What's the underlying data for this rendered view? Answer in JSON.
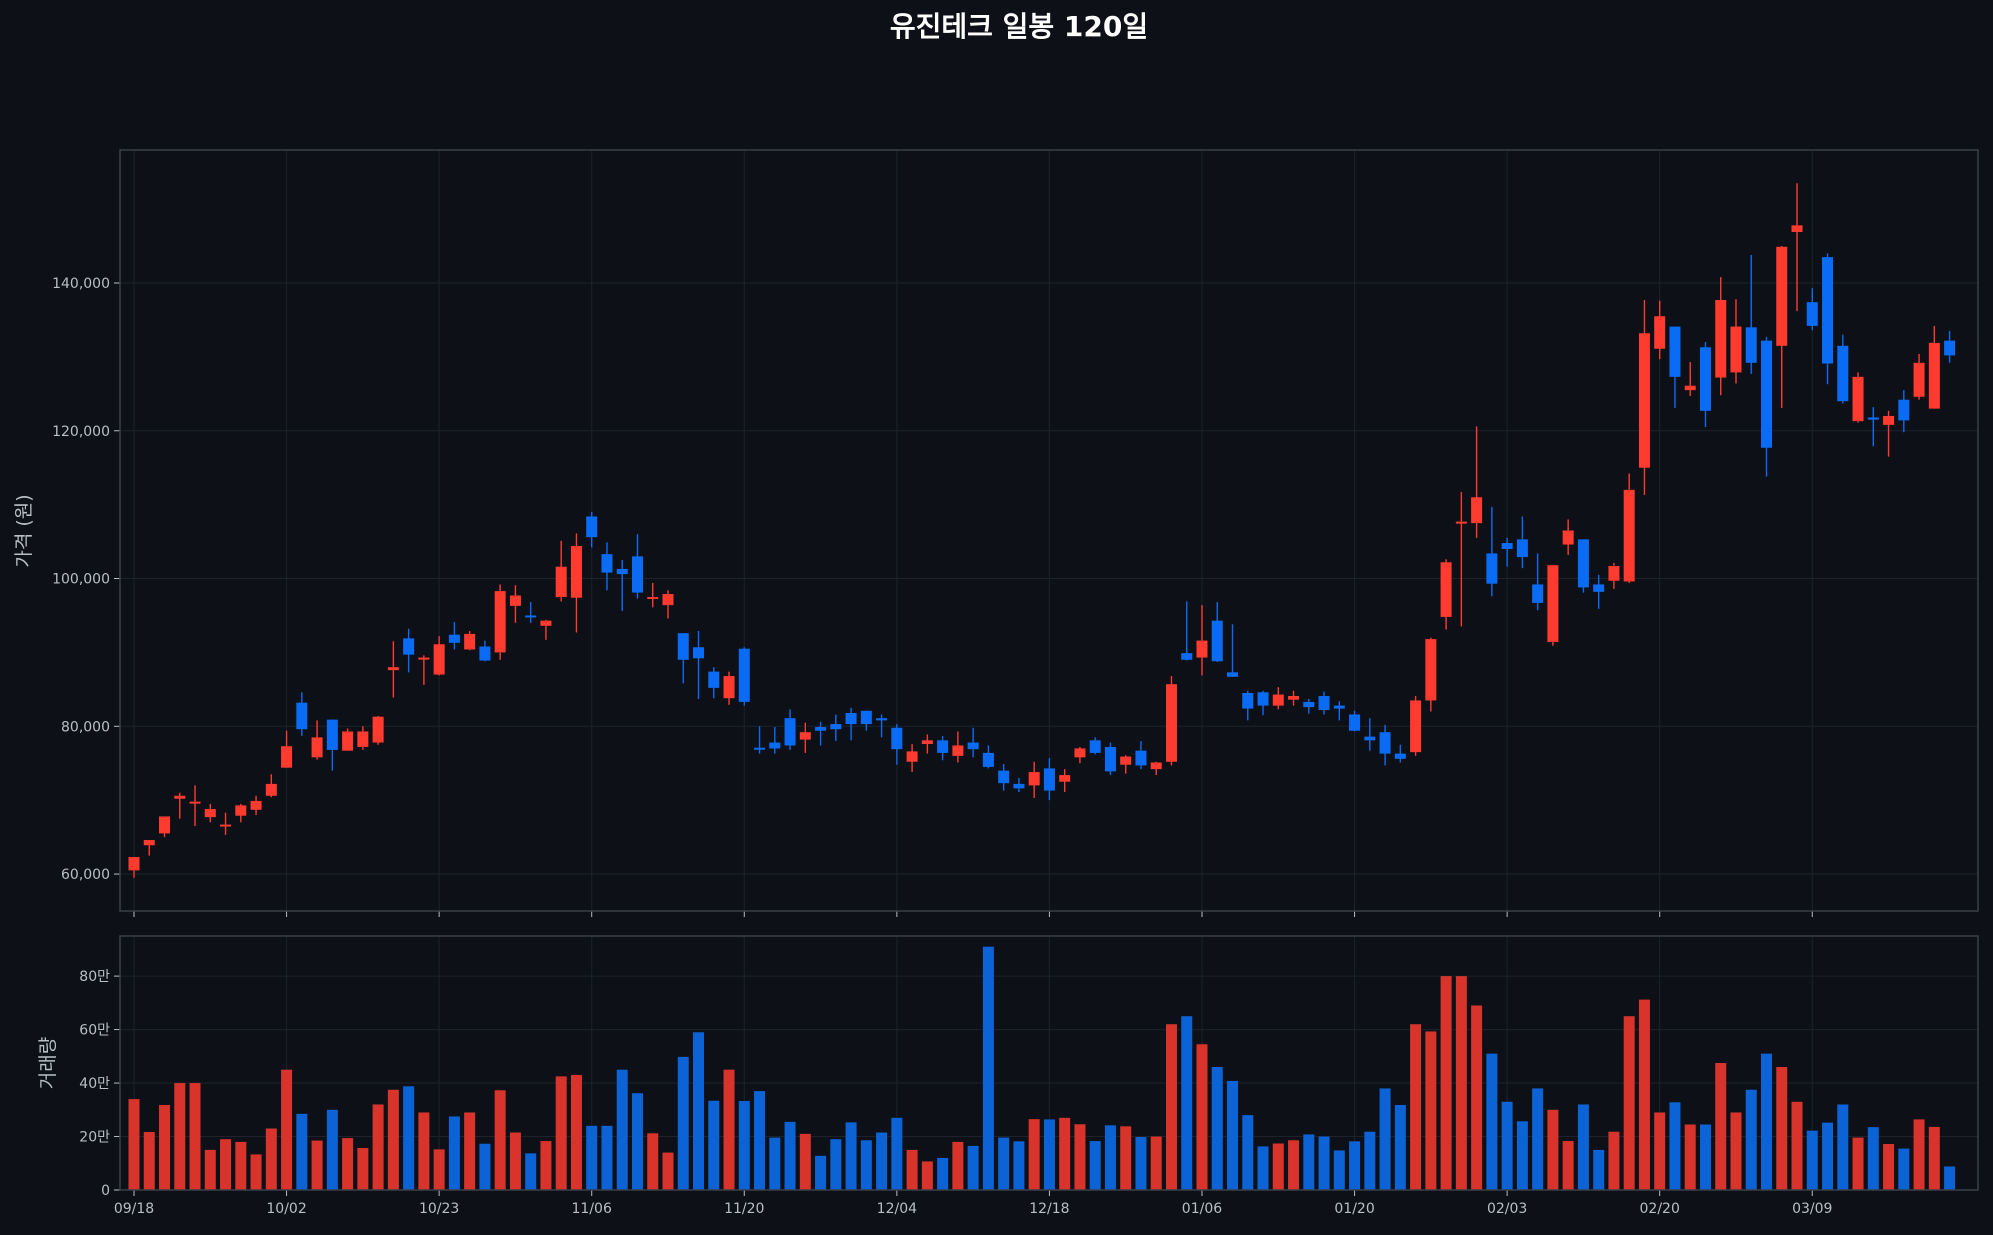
{
  "colors": {
    "background": "#0d1017",
    "up": "#ff3b30",
    "down": "#0a6cf5",
    "vol_up": "#d8342c",
    "vol_down": "#0b63d6",
    "grid": "#1d222b",
    "frame": "#3a3f48",
    "text": "#b9bec7"
  },
  "chart_data": {
    "type": "candlestick",
    "title": "유진테크 일봉 120일",
    "price_axis": {
      "label": "가격 (원)",
      "ylim": [
        55000,
        158000
      ],
      "ticks": [
        60000,
        80000,
        100000,
        120000,
        140000
      ],
      "tick_labels": [
        "60,000",
        "80,000",
        "100,000",
        "120,000",
        "140,000"
      ]
    },
    "volume_axis": {
      "label": "거래량",
      "ylim": [
        0,
        950000
      ],
      "ticks": [
        0,
        200000,
        400000,
        600000,
        800000
      ],
      "tick_labels": [
        "0",
        "20만",
        "40만",
        "60만",
        "80만"
      ]
    },
    "x_tick_labels": [
      "09/18",
      "10/02",
      "10/23",
      "11/06",
      "11/20",
      "12/04",
      "12/18",
      "01/06",
      "01/20",
      "02/03",
      "02/20",
      "03/09"
    ],
    "x_tick_index": [
      0,
      10,
      20,
      30,
      40,
      50,
      60,
      70,
      80,
      90,
      100,
      110
    ],
    "grid": true,
    "candles": [
      [
        60500,
        62300,
        59500,
        62300
      ],
      [
        63900,
        64600,
        62500,
        64600
      ],
      [
        65500,
        67800,
        65000,
        67800
      ],
      [
        70200,
        71000,
        67500,
        70600
      ],
      [
        69800,
        72000,
        66500,
        69800
      ],
      [
        67700,
        69500,
        67000,
        68800
      ],
      [
        66700,
        68300,
        65300,
        66700
      ],
      [
        67900,
        69500,
        67000,
        69300
      ],
      [
        68700,
        70600,
        68000,
        69900
      ],
      [
        70600,
        73500,
        70400,
        72200
      ],
      [
        74400,
        79400,
        74400,
        77300
      ],
      [
        83200,
        84600,
        78700,
        79600
      ],
      [
        75800,
        80800,
        75500,
        78500
      ],
      [
        80900,
        80900,
        74000,
        76800
      ],
      [
        76700,
        79700,
        76700,
        79300
      ],
      [
        77200,
        80000,
        76800,
        79300
      ],
      [
        77800,
        81400,
        77500,
        81300
      ],
      [
        87600,
        91500,
        83900,
        88000
      ],
      [
        91900,
        93200,
        87300,
        89700
      ],
      [
        89100,
        89600,
        85600,
        89300
      ],
      [
        87000,
        92200,
        86900,
        91100
      ],
      [
        92400,
        94100,
        90400,
        91300
      ],
      [
        90400,
        92900,
        90300,
        92500
      ],
      [
        90800,
        91600,
        88800,
        88900
      ],
      [
        90000,
        99200,
        89000,
        98300
      ],
      [
        96300,
        99100,
        94000,
        97700
      ],
      [
        95000,
        96800,
        94000,
        94800
      ],
      [
        93600,
        94400,
        91700,
        94300
      ],
      [
        97500,
        105100,
        96900,
        101600
      ],
      [
        97400,
        106100,
        92700,
        104400
      ],
      [
        108400,
        109000,
        104200,
        105600
      ],
      [
        103300,
        104900,
        98400,
        100800
      ],
      [
        101300,
        102500,
        95600,
        100600
      ],
      [
        103000,
        106000,
        97300,
        98100
      ],
      [
        97300,
        99400,
        96100,
        97500
      ],
      [
        96400,
        98400,
        94600,
        97900
      ],
      [
        92600,
        92600,
        85800,
        89000
      ],
      [
        90700,
        92900,
        83700,
        89200
      ],
      [
        87400,
        88000,
        83800,
        85200
      ],
      [
        83800,
        87400,
        82900,
        86800
      ],
      [
        90500,
        90700,
        82800,
        83300
      ],
      [
        77100,
        80000,
        76300,
        77000
      ],
      [
        77800,
        79900,
        76300,
        77000
      ],
      [
        81100,
        82300,
        76800,
        77400
      ],
      [
        78200,
        80500,
        76400,
        79200
      ],
      [
        79900,
        80600,
        77400,
        79400
      ],
      [
        80300,
        81600,
        78000,
        79600
      ],
      [
        81800,
        82500,
        78100,
        80300
      ],
      [
        82100,
        82100,
        79400,
        80300
      ],
      [
        81100,
        81600,
        78500,
        80800
      ],
      [
        79800,
        80300,
        74800,
        76900
      ],
      [
        75200,
        77600,
        73800,
        76600
      ],
      [
        77600,
        78900,
        76300,
        78100
      ],
      [
        78100,
        78700,
        75400,
        76400
      ],
      [
        76000,
        79300,
        75100,
        77400
      ],
      [
        77800,
        79800,
        75800,
        76900
      ],
      [
        76400,
        77400,
        74300,
        74500
      ],
      [
        74000,
        74900,
        71300,
        72300
      ],
      [
        72200,
        73000,
        71100,
        71600
      ],
      [
        72000,
        75200,
        70300,
        73800
      ],
      [
        74300,
        75700,
        70000,
        71300
      ],
      [
        72500,
        74200,
        71100,
        73400
      ],
      [
        75800,
        77200,
        75000,
        77000
      ],
      [
        78100,
        78500,
        76200,
        76400
      ],
      [
        77200,
        77800,
        73400,
        73900
      ],
      [
        74800,
        76100,
        73600,
        75900
      ],
      [
        76700,
        78000,
        74200,
        74700
      ],
      [
        74200,
        75200,
        73400,
        75100
      ],
      [
        75200,
        86800,
        74700,
        85700
      ],
      [
        89900,
        96900,
        88900,
        89000
      ],
      [
        89300,
        96400,
        86900,
        91600
      ],
      [
        94300,
        96800,
        88700,
        88800
      ],
      [
        87300,
        93800,
        86700,
        86700
      ],
      [
        84500,
        84800,
        80800,
        82400
      ],
      [
        84600,
        84800,
        81500,
        82800
      ],
      [
        82800,
        85300,
        82300,
        84300
      ],
      [
        83600,
        84800,
        82800,
        84100
      ],
      [
        83300,
        83700,
        81700,
        82600
      ],
      [
        84100,
        84700,
        81600,
        82200
      ],
      [
        82800,
        83400,
        80800,
        82400
      ],
      [
        81600,
        82100,
        79300,
        79400
      ],
      [
        78600,
        81100,
        76700,
        78100
      ],
      [
        79200,
        80200,
        74700,
        76300
      ],
      [
        76300,
        77500,
        75100,
        75600
      ],
      [
        76500,
        84100,
        76000,
        83500
      ],
      [
        83500,
        92000,
        82000,
        91800
      ],
      [
        94800,
        102600,
        93100,
        102200
      ],
      [
        107600,
        111700,
        93500,
        107700
      ],
      [
        107500,
        120600,
        105500,
        111000
      ],
      [
        103400,
        109700,
        97600,
        99300
      ],
      [
        104800,
        105500,
        101600,
        104000
      ],
      [
        105300,
        108400,
        101400,
        102900
      ],
      [
        99200,
        103400,
        95700,
        96700
      ],
      [
        91400,
        101800,
        90900,
        101800
      ],
      [
        104600,
        108000,
        103200,
        106500
      ],
      [
        105300,
        105300,
        98100,
        98800
      ],
      [
        99200,
        100500,
        95900,
        98200
      ],
      [
        99700,
        102100,
        98600,
        101700
      ],
      [
        99600,
        114200,
        99400,
        112000
      ],
      [
        115000,
        137700,
        111300,
        133200
      ],
      [
        131100,
        137600,
        129700,
        135500
      ],
      [
        134100,
        134100,
        123100,
        127300
      ],
      [
        125500,
        129300,
        124700,
        126100
      ],
      [
        131300,
        132000,
        120500,
        122700
      ],
      [
        127200,
        140800,
        124800,
        137700
      ],
      [
        127900,
        137800,
        126400,
        134100
      ],
      [
        134000,
        143800,
        127700,
        129200
      ],
      [
        132200,
        132700,
        113800,
        117700
      ],
      [
        131500,
        145000,
        123100,
        144900
      ],
      [
        146900,
        153500,
        136200,
        147800
      ],
      [
        137400,
        139300,
        133600,
        134200
      ],
      [
        143500,
        144000,
        126300,
        129100
      ],
      [
        131500,
        133000,
        123700,
        124000
      ],
      [
        121300,
        127900,
        121100,
        127300
      ],
      [
        121800,
        123200,
        117900,
        121500
      ],
      [
        120800,
        122700,
        116500,
        122000
      ],
      [
        124200,
        125500,
        119800,
        121400
      ],
      [
        124600,
        130400,
        124200,
        129200
      ],
      [
        123000,
        134200,
        123000,
        131900
      ],
      [
        132200,
        133500,
        129200,
        130200
      ]
    ],
    "volume": [
      340000,
      217000,
      318000,
      400000,
      400000,
      150000,
      190000,
      180000,
      133000,
      230000,
      450000,
      285000,
      185000,
      300000,
      194000,
      157000,
      320000,
      375000,
      388000,
      290000,
      152000,
      275000,
      290000,
      173000,
      373000,
      215000,
      137000,
      183000,
      425000,
      430000,
      240000,
      240000,
      450000,
      362000,
      212000,
      140000,
      498000,
      590000,
      334000,
      450000,
      333000,
      370000,
      196000,
      255000,
      210000,
      128000,
      190000,
      253000,
      186000,
      215000,
      270000,
      150000,
      107000,
      120000,
      180000,
      165000,
      910000,
      196000,
      182000,
      265000,
      264000,
      270000,
      246000,
      183000,
      242000,
      238000,
      198000,
      200000,
      620000,
      650000,
      545000,
      460000,
      408000,
      280000,
      163000,
      174000,
      186000,
      208000,
      200000,
      148000,
      182000,
      218000,
      380000,
      318000,
      620000,
      593000,
      800000,
      800000,
      690000,
      510000,
      330000,
      257000,
      380000,
      300000,
      183000,
      320000,
      150000,
      218000,
      650000,
      712000,
      290000,
      328000,
      245000,
      245000,
      475000,
      290000,
      375000,
      510000,
      460000,
      330000,
      222000,
      252000,
      320000,
      196000,
      235000,
      172000,
      155000,
      264000,
      236000,
      88000
    ]
  }
}
